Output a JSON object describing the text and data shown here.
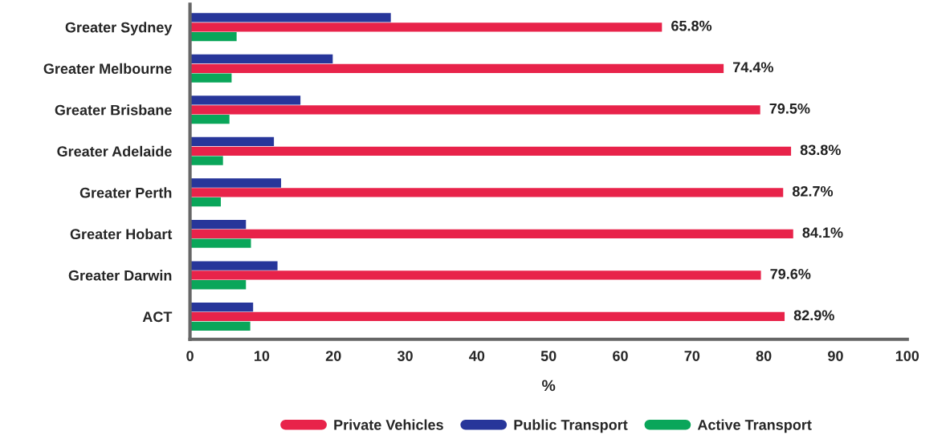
{
  "chart_data": {
    "type": "bar",
    "orientation": "horizontal",
    "xlabel": "%",
    "categories": [
      "Greater Sydney",
      "Greater Melbourne",
      "Greater Brisbane",
      "Greater Adelaide",
      "Greater Perth",
      "Greater Hobart",
      "Greater Darwin",
      "ACT"
    ],
    "series": [
      {
        "name": "Private Vehicles",
        "color": "#e8234a",
        "values": [
          65.8,
          74.4,
          79.5,
          83.8,
          82.7,
          84.1,
          79.6,
          82.9
        ],
        "value_labels": [
          "65.8%",
          "74.4%",
          "79.5%",
          "83.8%",
          "82.7%",
          "84.1%",
          "79.6%",
          "82.9%"
        ]
      },
      {
        "name": "Public Transport",
        "color": "#27369a",
        "values": [
          28.0,
          19.9,
          15.4,
          11.7,
          12.7,
          7.8,
          12.2,
          8.8
        ]
      },
      {
        "name": "Active Transport",
        "color": "#0aa65a",
        "values": [
          6.5,
          5.8,
          5.5,
          4.6,
          4.3,
          8.5,
          7.8,
          8.4
        ]
      }
    ],
    "xlim": [
      0,
      100
    ],
    "xticks": [
      0,
      10,
      20,
      30,
      40,
      50,
      60,
      70,
      80,
      90,
      100
    ],
    "grid": false,
    "legend": "bottom"
  }
}
